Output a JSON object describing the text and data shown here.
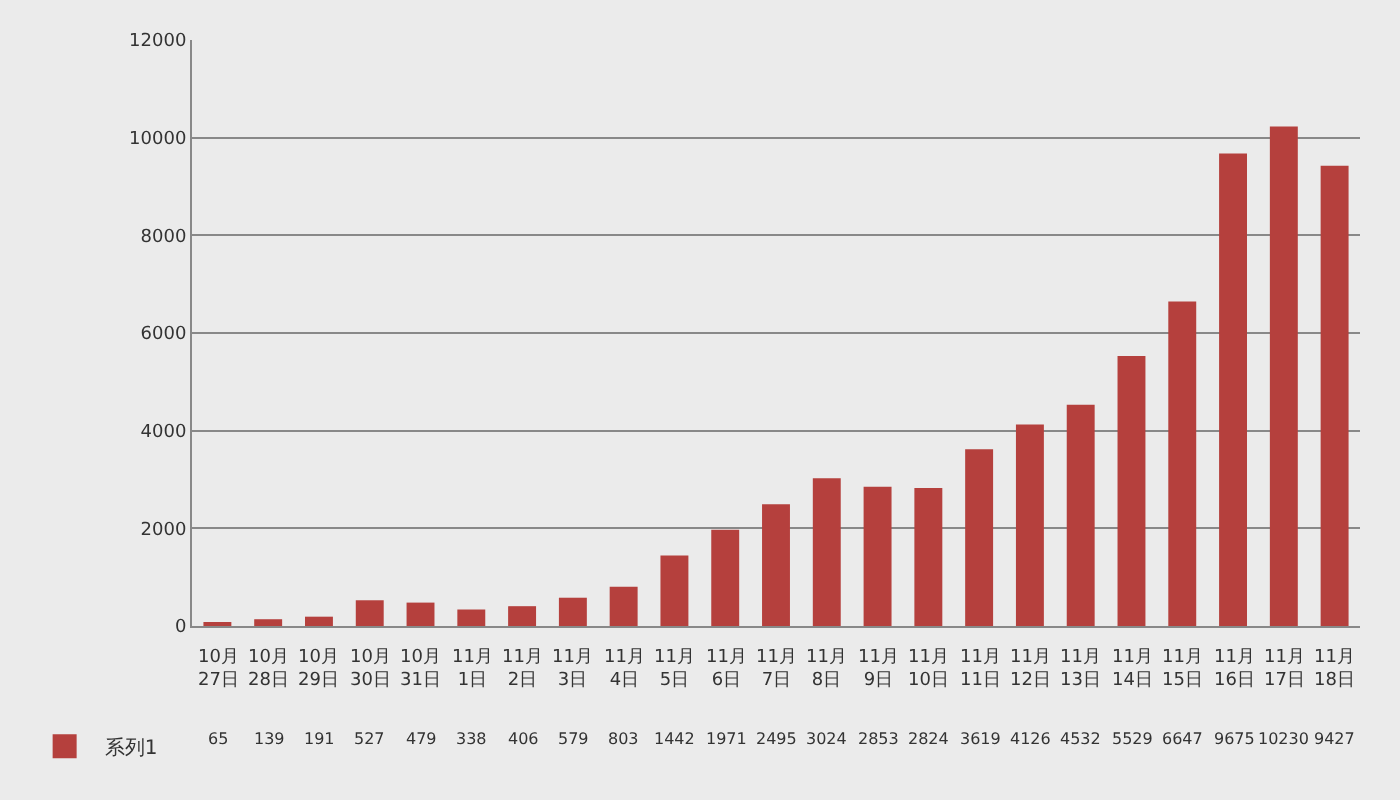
{
  "chart_data": {
    "type": "bar",
    "categories": [
      "10月27日",
      "10月28日",
      "10月29日",
      "10月30日",
      "10月31日",
      "11月1日",
      "11月2日",
      "11月3日",
      "11月4日",
      "11月5日",
      "11月6日",
      "11月7日",
      "11月8日",
      "11月9日",
      "11月10日",
      "11月11日",
      "11月12日",
      "11月13日",
      "11月14日",
      "11月15日",
      "11月16日",
      "11月17日",
      "11月18日"
    ],
    "series": [
      {
        "name": "系列1",
        "color": "#b5403d",
        "values": [
          65,
          139,
          191,
          527,
          479,
          338,
          406,
          579,
          803,
          1442,
          1971,
          2495,
          3024,
          2853,
          2824,
          3619,
          4126,
          4532,
          5529,
          6647,
          9675,
          10230,
          9427
        ]
      }
    ],
    "ylim": [
      0,
      12000
    ],
    "yticks": [
      0,
      2000,
      4000,
      6000,
      8000,
      10000,
      12000
    ],
    "grid": "y",
    "legend": "bottom left",
    "data_labels": true
  }
}
